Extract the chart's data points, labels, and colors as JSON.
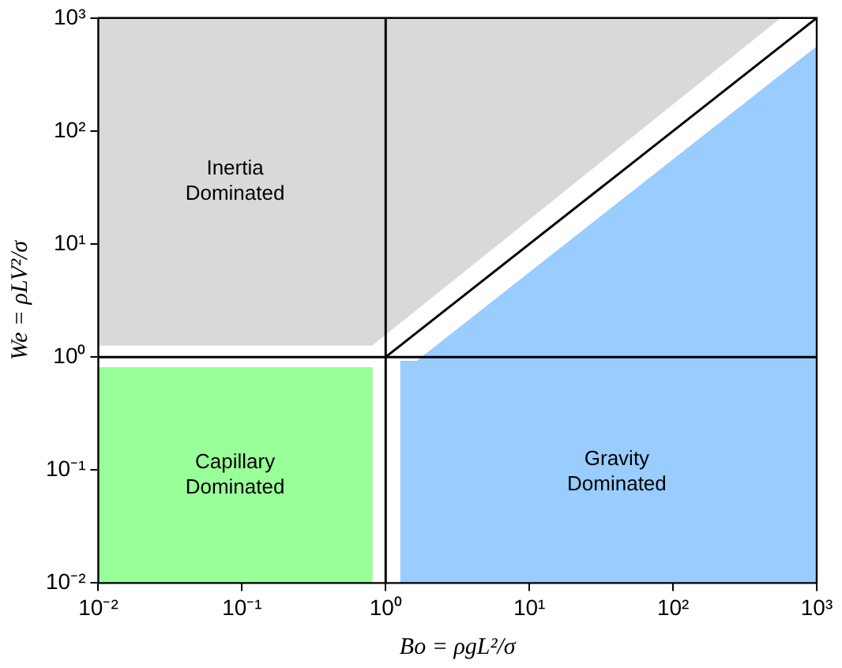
{
  "chart_data": {
    "type": "area",
    "xlabel": "Bo = ρgL²/σ",
    "ylabel": "We = ρLV²/σ",
    "log": "xy",
    "grid": false,
    "legend": false,
    "xlim": [
      0.01,
      1000
    ],
    "ylim": [
      0.01,
      1000
    ],
    "xticks": [
      {
        "value": 0.01,
        "label": "10⁻²"
      },
      {
        "value": 0.1,
        "label": "10⁻¹"
      },
      {
        "value": 1,
        "label": "10⁰"
      },
      {
        "value": 10,
        "label": "10¹"
      },
      {
        "value": 100,
        "label": "10²"
      },
      {
        "value": 1000,
        "label": "10³"
      }
    ],
    "yticks": [
      {
        "value": 0.01,
        "label": "10⁻²"
      },
      {
        "value": 0.1,
        "label": "10⁻¹"
      },
      {
        "value": 1,
        "label": "10⁰"
      },
      {
        "value": 10,
        "label": "10¹"
      },
      {
        "value": 100,
        "label": "10²"
      },
      {
        "value": 1000,
        "label": "10³"
      }
    ],
    "series": [
      {
        "color": "#d9d9d9",
        "x": [
          0.01,
          0.8,
          550,
          0.01
        ],
        "values": [
          1.28,
          1.28,
          1000,
          1000
        ]
      },
      {
        "color": "#99ff99",
        "x": [
          0.01,
          0.01,
          0.8,
          0.8
        ],
        "values": [
          0.01,
          0.8,
          0.8,
          0.01
        ]
      },
      {
        "color": "#99ccff",
        "x": [
          1.28,
          1.28,
          1.65,
          1000,
          1000
        ],
        "values": [
          0.01,
          0.91,
          0.91,
          550,
          0.01
        ]
      },
      {
        "type": "line",
        "color": "#000000",
        "x": [
          1,
          1000
        ],
        "values": [
          1,
          1000
        ]
      },
      {
        "type": "line",
        "color": "#000000",
        "x": [
          1,
          1
        ],
        "values": [
          0.01,
          1000
        ]
      },
      {
        "type": "line",
        "color": "#000000",
        "x": [
          0.01,
          1000
        ],
        "values": [
          1,
          1
        ]
      }
    ],
    "annotations": [
      "Inertia\nDominated",
      "Capillary\nDominated",
      "Gravity\nDominated"
    ]
  }
}
